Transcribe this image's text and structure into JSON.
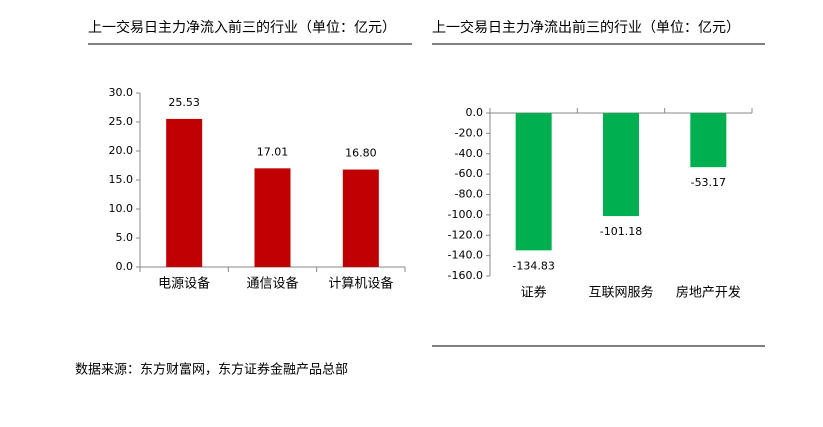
{
  "chart_data": [
    {
      "type": "bar",
      "title": "上一交易日主力净流入前三的行业（单位：亿元）",
      "categories": [
        "电源设备",
        "通信设备",
        "计算机设备"
      ],
      "values": [
        25.53,
        17.01,
        16.8
      ],
      "value_labels": [
        "25.53",
        "17.01",
        "16.80"
      ],
      "color": "#c00000",
      "ylim": [
        0,
        30
      ],
      "yticks": [
        {
          "value": 0,
          "label": "0.0"
        },
        {
          "value": 5,
          "label": "5.0"
        },
        {
          "value": 10,
          "label": "10.0"
        },
        {
          "value": 15,
          "label": "15.0"
        },
        {
          "value": 20,
          "label": "20.0"
        },
        {
          "value": 25,
          "label": "25.0"
        },
        {
          "value": 30,
          "label": "30.0"
        }
      ]
    },
    {
      "type": "bar",
      "title": "上一交易日主力净流出前三的行业（单位：亿元）",
      "categories": [
        "证券",
        "互联网服务",
        "房地产开发"
      ],
      "values": [
        -134.83,
        -101.18,
        -53.17
      ],
      "value_labels": [
        "-134.83",
        "-101.18",
        "-53.17"
      ],
      "color": "#00b050",
      "ylim": [
        -160,
        0
      ],
      "yticks": [
        {
          "value": -160,
          "label": "-160.0"
        },
        {
          "value": -140,
          "label": "-140.0"
        },
        {
          "value": -120,
          "label": "-120.0"
        },
        {
          "value": -100,
          "label": "-100.0"
        },
        {
          "value": -80,
          "label": "-80.0"
        },
        {
          "value": -60,
          "label": "-60.0"
        },
        {
          "value": -40,
          "label": "-40.0"
        },
        {
          "value": -20,
          "label": "-20.0"
        },
        {
          "value": 0,
          "label": "0.0"
        }
      ]
    }
  ],
  "source": "数据来源：东方财富网，东方证券金融产品总部"
}
